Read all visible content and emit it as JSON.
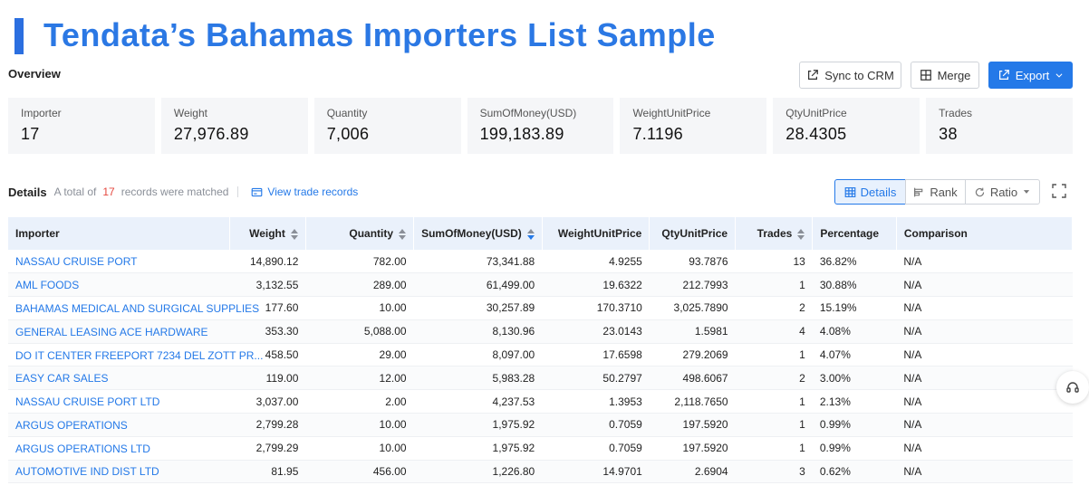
{
  "header": {
    "title": "Tendata’s Bahamas Importers List Sample"
  },
  "overview": {
    "label": "Overview"
  },
  "toolbar": {
    "sync_label": "Sync to CRM",
    "merge_label": "Merge",
    "export_label": "Export"
  },
  "stats": [
    {
      "label": "Importer",
      "value": "17"
    },
    {
      "label": "Weight",
      "value": "27,976.89"
    },
    {
      "label": "Quantity",
      "value": "7,006"
    },
    {
      "label": "SumOfMoney(USD)",
      "value": "199,183.89"
    },
    {
      "label": "WeightUnitPrice",
      "value": "7.1196"
    },
    {
      "label": "QtyUnitPrice",
      "value": "28.4305"
    },
    {
      "label": "Trades",
      "value": "38"
    }
  ],
  "details": {
    "label": "Details",
    "prefix": "A total of",
    "count": "17",
    "suffix": "records were matched",
    "view_link": "View trade records"
  },
  "views": {
    "details": "Details",
    "rank": "Rank",
    "ratio": "Ratio"
  },
  "table": {
    "headers": [
      "Importer",
      "Weight",
      "Quantity",
      "SumOfMoney(USD)",
      "WeightUnitPrice",
      "QtyUnitPrice",
      "Trades",
      "Percentage",
      "Comparison"
    ],
    "rows": [
      [
        "NASSAU CRUISE PORT",
        "14,890.12",
        "782.00",
        "73,341.88",
        "4.9255",
        "93.7876",
        "13",
        "36.82%",
        "N/A"
      ],
      [
        "AML FOODS",
        "3,132.55",
        "289.00",
        "61,499.00",
        "19.6322",
        "212.7993",
        "1",
        "30.88%",
        "N/A"
      ],
      [
        "BAHAMAS MEDICAL AND SURGICAL SUPPLIES",
        "177.60",
        "10.00",
        "30,257.89",
        "170.3710",
        "3,025.7890",
        "2",
        "15.19%",
        "N/A"
      ],
      [
        "GENERAL LEASING ACE HARDWARE",
        "353.30",
        "5,088.00",
        "8,130.96",
        "23.0143",
        "1.5981",
        "4",
        "4.08%",
        "N/A"
      ],
      [
        "DO IT CENTER FREEPORT 7234 DEL ZOTT PR...",
        "458.50",
        "29.00",
        "8,097.00",
        "17.6598",
        "279.2069",
        "1",
        "4.07%",
        "N/A"
      ],
      [
        "EASY CAR SALES",
        "119.00",
        "12.00",
        "5,983.28",
        "50.2797",
        "498.6067",
        "2",
        "3.00%",
        "N/A"
      ],
      [
        "NASSAU CRUISE PORT LTD",
        "3,037.00",
        "2.00",
        "4,237.53",
        "1.3953",
        "2,118.7650",
        "1",
        "2.13%",
        "N/A"
      ],
      [
        "ARGUS OPERATIONS",
        "2,799.28",
        "10.00",
        "1,975.92",
        "0.7059",
        "197.5920",
        "1",
        "0.99%",
        "N/A"
      ],
      [
        "ARGUS OPERATIONS LTD",
        "2,799.29",
        "10.00",
        "1,975.92",
        "0.7059",
        "197.5920",
        "1",
        "0.99%",
        "N/A"
      ],
      [
        "AUTOMOTIVE IND DIST LTD",
        "81.95",
        "456.00",
        "1,226.80",
        "14.9701",
        "2.6904",
        "3",
        "0.62%",
        "N/A"
      ]
    ]
  },
  "colors": {
    "accent": "#2479e8",
    "title": "#2b78e4",
    "count": "#e5483f",
    "header_bg": "#eaf1fb"
  }
}
